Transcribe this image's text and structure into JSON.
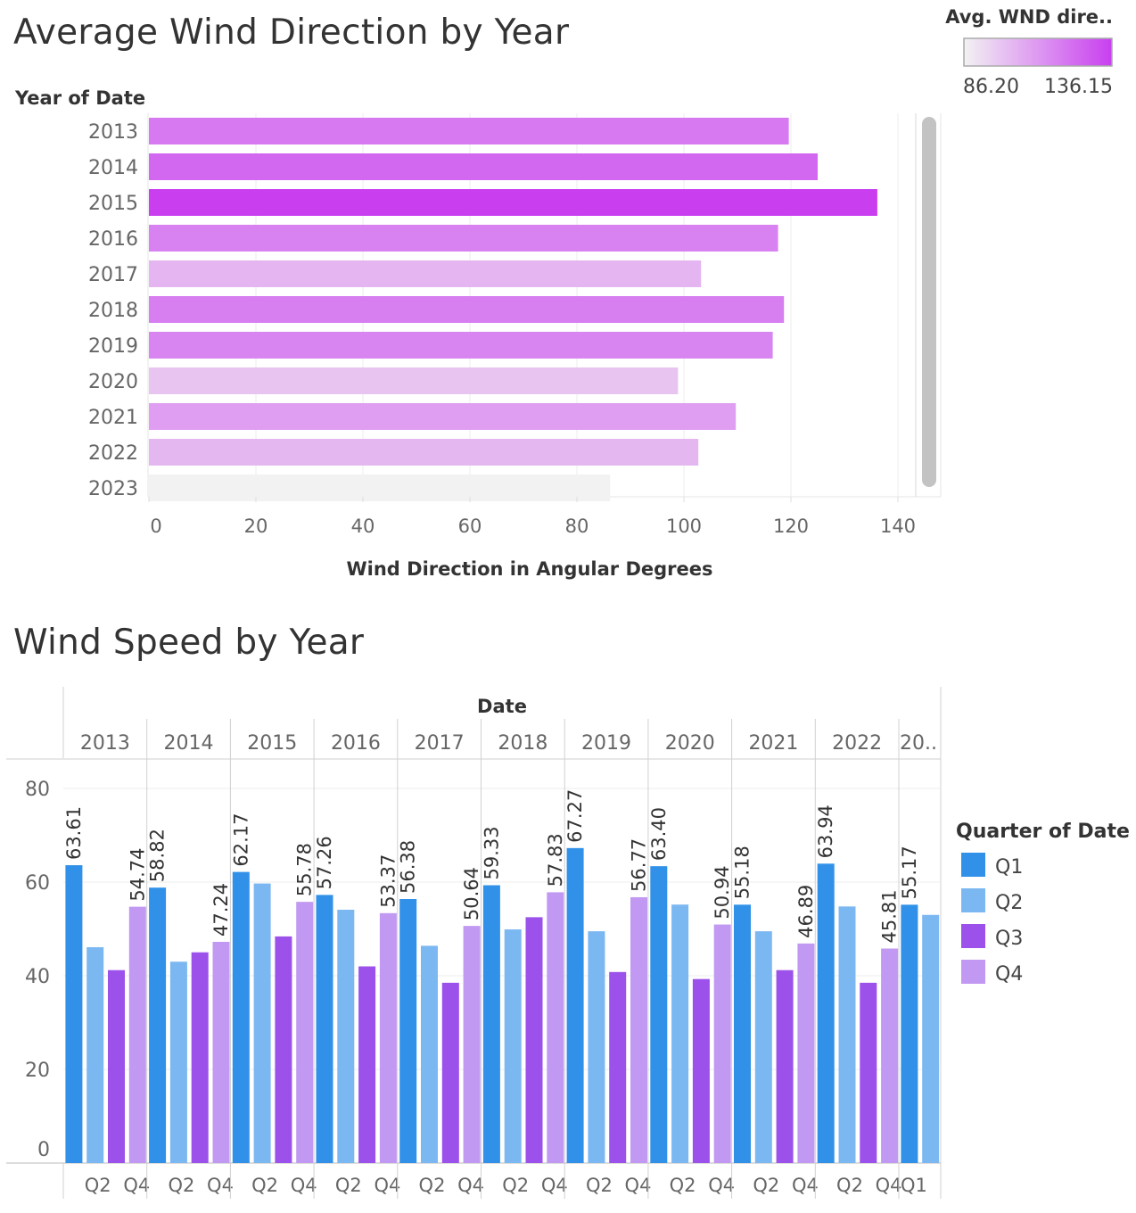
{
  "chart_data": [
    {
      "type": "bar",
      "orientation": "horizontal",
      "title": "Average Wind Direction by Year",
      "row_header": "Year of Date",
      "xlabel": "Wind Direction in Angular Degrees",
      "xlim": [
        0,
        148
      ],
      "x_ticks": [
        "0",
        "20",
        "40",
        "60",
        "80",
        "100",
        "120",
        "140"
      ],
      "categories": [
        "2013",
        "2014",
        "2015",
        "2016",
        "2017",
        "2018",
        "2019",
        "2020",
        "2021",
        "2022",
        "2023"
      ],
      "values": [
        119.6,
        125.0,
        136.15,
        117.6,
        103.2,
        118.7,
        116.6,
        98.9,
        109.7,
        102.7,
        86.2
      ],
      "color_legend": {
        "title": "Avg. WND dire..",
        "min_label": "86.20",
        "max_label": "136.15",
        "min_value": 86.2,
        "max_value": 136.15,
        "color_low": "#f2f2f2",
        "color_high": "#c93ff0"
      },
      "grid": true
    },
    {
      "type": "bar",
      "title": "Wind Speed by Year",
      "column_header": "Date",
      "years": [
        "2013",
        "2014",
        "2015",
        "2016",
        "2017",
        "2018",
        "2019",
        "2020",
        "2021",
        "2022",
        "20.."
      ],
      "quarters": [
        "Q1",
        "Q2",
        "Q3",
        "Q4"
      ],
      "bottom_labels": [
        [
          "Q2",
          "Q4"
        ],
        [
          "Q2",
          "Q4"
        ],
        [
          "Q2",
          "Q4"
        ],
        [
          "Q2",
          "Q4"
        ],
        [
          "Q2",
          "Q4"
        ],
        [
          "Q2",
          "Q4"
        ],
        [
          "Q2",
          "Q4"
        ],
        [
          "Q2",
          "Q4"
        ],
        [
          "Q2",
          "Q4"
        ],
        [
          "Q2",
          "Q4"
        ],
        [
          "Q1"
        ]
      ],
      "series": [
        {
          "name": "Q1",
          "color": "#3191e8",
          "values": [
            63.61,
            58.82,
            62.17,
            57.26,
            56.38,
            59.33,
            67.27,
            63.4,
            55.18,
            63.94,
            55.17
          ],
          "labels": [
            "63.61",
            "58.82",
            "62.17",
            "57.26",
            "56.38",
            "59.33",
            "67.27",
            "63.40",
            "55.18",
            "63.94",
            "55.17"
          ]
        },
        {
          "name": "Q2",
          "color": "#7bb8f2",
          "values": [
            46.1,
            43.0,
            59.7,
            54.1,
            46.4,
            49.9,
            49.5,
            55.2,
            49.5,
            54.8,
            53.0
          ],
          "labels": [
            "",
            "",
            "",
            "",
            "",
            "",
            "",
            "",
            "",
            "",
            ""
          ]
        },
        {
          "name": "Q3",
          "color": "#9b51ea",
          "values": [
            41.2,
            45.0,
            48.4,
            42.0,
            38.5,
            52.5,
            40.8,
            39.3,
            41.2,
            38.5,
            null
          ],
          "labels": [
            "",
            "",
            "",
            "",
            "",
            "",
            "",
            "",
            "",
            "",
            ""
          ]
        },
        {
          "name": "Q4",
          "color": "#c199f2",
          "values": [
            54.74,
            47.24,
            55.78,
            53.37,
            50.64,
            57.83,
            56.77,
            50.94,
            46.89,
            45.81,
            null
          ],
          "labels": [
            "54.74",
            "47.24",
            "55.78",
            "53.37",
            "50.64",
            "57.83",
            "56.77",
            "50.94",
            "46.89",
            "45.81",
            ""
          ]
        }
      ],
      "ylim": [
        0,
        80
      ],
      "y_ticks": [
        "0",
        "20",
        "40",
        "60",
        "80"
      ],
      "legend": {
        "title": "Quarter of Date",
        "position": "right"
      },
      "grid": true
    }
  ]
}
